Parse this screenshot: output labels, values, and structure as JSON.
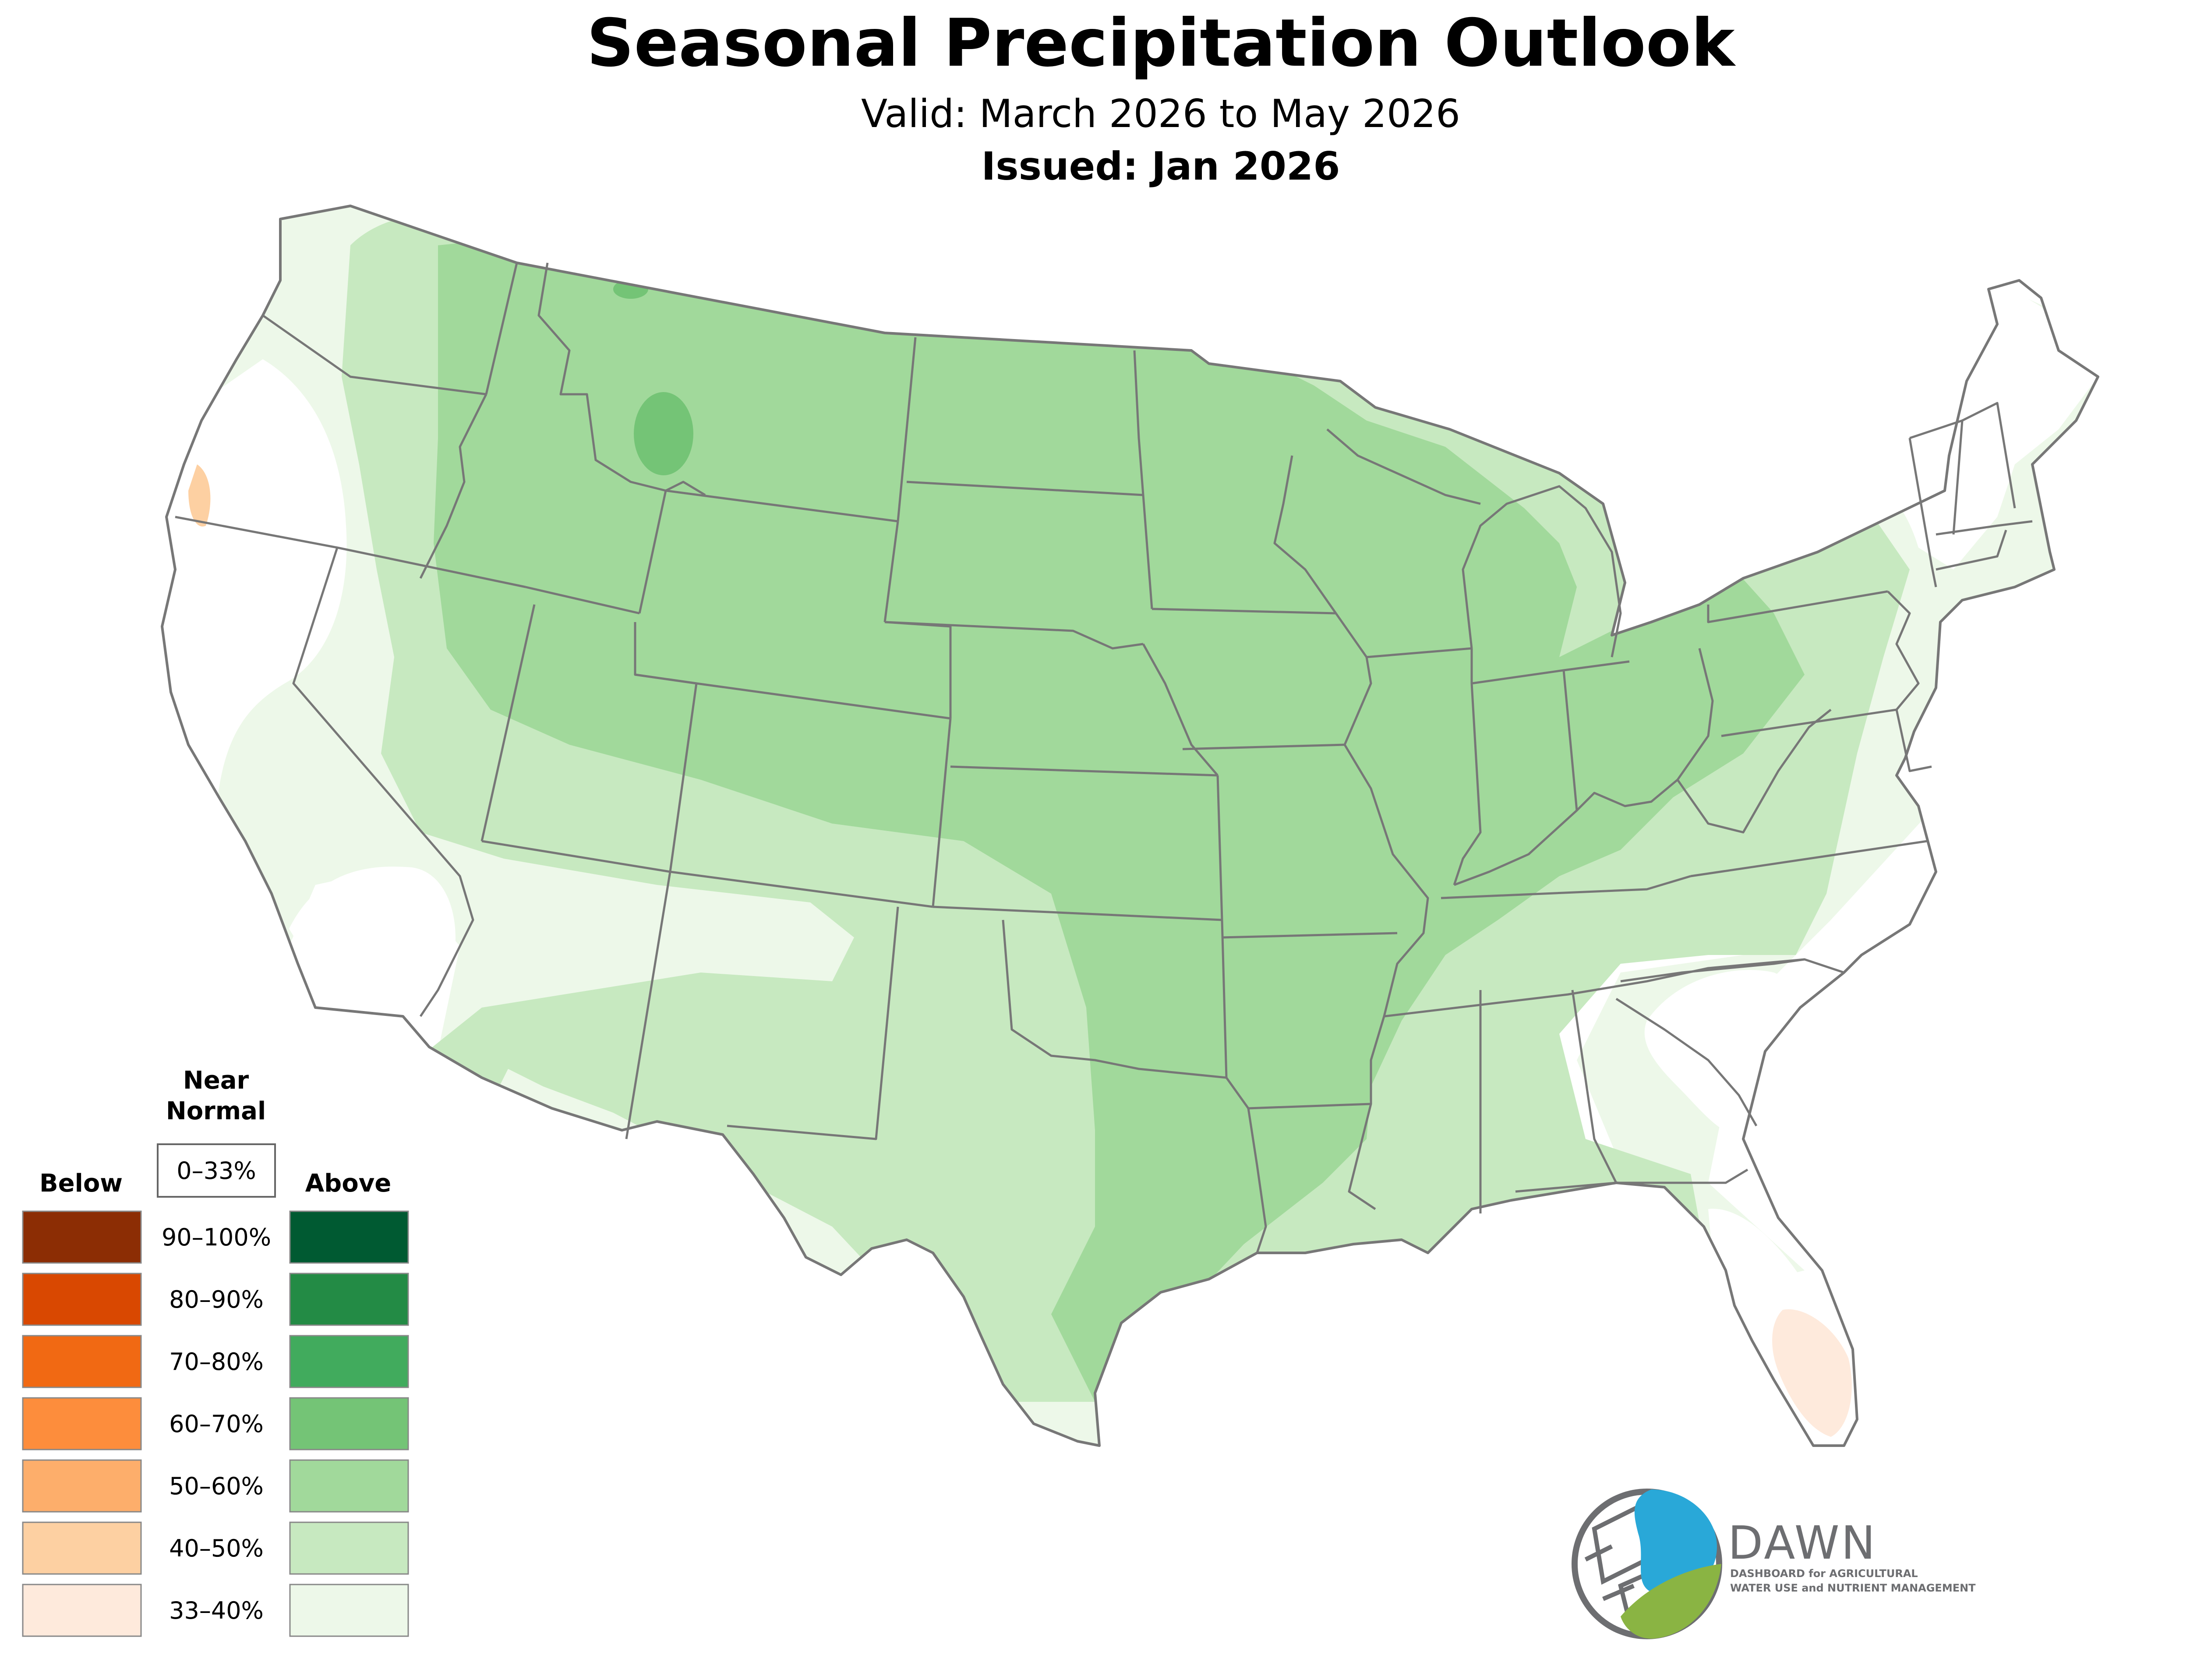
{
  "title": "Seasonal Precipitation Outlook",
  "valid": "Valid: March 2026 to May 2026",
  "issued": "Issued: Jan 2026",
  "legend": {
    "near_normal_line1": "Near",
    "near_normal_line2": "Normal",
    "near_normal_range": "0–33%",
    "below_label": "Below",
    "above_label": "Above",
    "ranges": [
      "90–100%",
      "80–90%",
      "70–80%",
      "60–70%",
      "50–60%",
      "40–50%",
      "33–40%"
    ],
    "below_colors": [
      "#8c2d04",
      "#d94801",
      "#f16913",
      "#fd8d3c",
      "#fdae6b",
      "#fdd0a2",
      "#feeadc"
    ],
    "above_colors": [
      "#005a32",
      "#238b45",
      "#41ab5d",
      "#74c476",
      "#a1d99b",
      "#c7e9c0",
      "#edf8e9"
    ]
  },
  "logo": {
    "name": "DAWN",
    "tagline_line1": "DASHBOARD for AGRICULTURAL",
    "tagline_line2": "WATER USE and NUTRIENT MANAGEMENT",
    "icon": "water-drop-leaf-icon"
  },
  "map": {
    "region": "Contiguous United States",
    "icon": "us-states-map"
  }
}
